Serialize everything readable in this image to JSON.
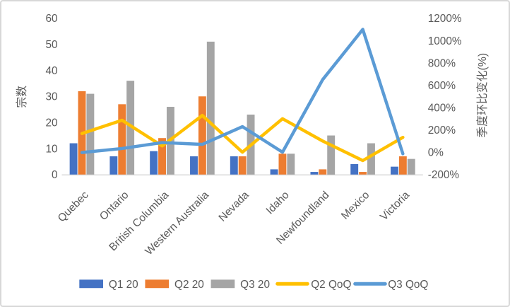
{
  "chart_data": {
    "type": "combo-bar-line",
    "title": "",
    "categories": [
      "Quebec",
      "Ontario",
      "British Columbia",
      "Western Australia",
      "Nevada",
      "Idaho",
      "Newfoundland",
      "Mexico",
      "Victoria"
    ],
    "bar_series": [
      {
        "name": "Q1 20",
        "color": "#4472C4",
        "axis": "left",
        "values": [
          12,
          7,
          9,
          7,
          7,
          2,
          1,
          4,
          3
        ]
      },
      {
        "name": "Q2 20",
        "color": "#ED7D31",
        "axis": "left",
        "values": [
          32,
          27,
          14,
          30,
          7,
          8,
          2,
          1,
          7
        ]
      },
      {
        "name": "Q3 20",
        "color": "#A5A5A5",
        "axis": "left",
        "values": [
          31,
          36,
          26,
          51,
          23,
          8,
          15,
          12,
          6
        ]
      }
    ],
    "line_series": [
      {
        "name": "Q2 QoQ",
        "color": "#FFC000",
        "axis": "right",
        "values_pct": [
          167,
          286,
          56,
          329,
          0,
          300,
          100,
          -75,
          133
        ]
      },
      {
        "name": "Q3 QoQ",
        "color": "#5B9BD5",
        "axis": "right",
        "values_pct": [
          -3,
          33,
          86,
          70,
          229,
          0,
          650,
          1100,
          -14
        ]
      }
    ],
    "left_axis": {
      "title": "宗数",
      "min": 0,
      "max": 60,
      "step": 10,
      "tick_labels": [
        "0",
        "10",
        "20",
        "30",
        "40",
        "50",
        "60"
      ]
    },
    "right_axis": {
      "title": "季度环比变化(%)",
      "min": -200,
      "max": 1200,
      "step": 200,
      "tick_labels": [
        "-200%",
        "0%",
        "200%",
        "400%",
        "600%",
        "800%",
        "1000%",
        "1200%"
      ]
    },
    "legend": {
      "position": "bottom",
      "items": [
        "Q1 20",
        "Q2 20",
        "Q3 20",
        "Q2 QoQ",
        "Q3 QoQ"
      ]
    },
    "gridlines": false,
    "colors": {
      "text": "#595959",
      "axis_line": "#D9D9D9",
      "frame_border": "#D8D8D8",
      "background": "#FFFFFF"
    }
  }
}
